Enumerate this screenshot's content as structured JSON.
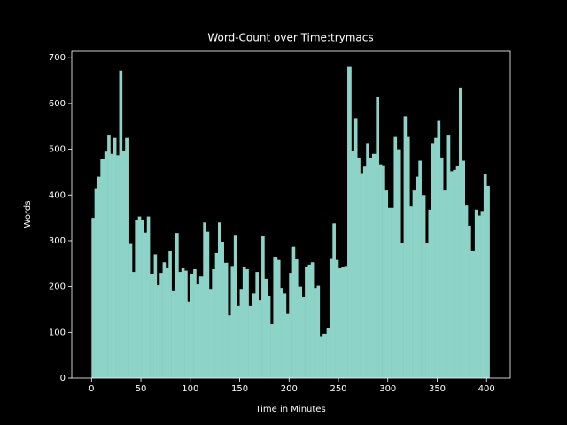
{
  "chart_data": {
    "type": "bar",
    "title": "Word-Count over Time:trymacs",
    "xlabel": "Time in Minutes",
    "ylabel": "Words",
    "color": "#8dd3c7",
    "x": [
      0,
      3,
      6,
      9,
      13,
      16,
      19,
      22,
      25,
      28,
      31,
      34,
      38,
      41,
      44,
      47,
      50,
      53,
      56,
      59,
      63,
      66,
      69,
      72,
      75,
      78,
      81,
      84,
      88,
      91,
      94,
      97,
      100,
      103,
      106,
      109,
      113,
      116,
      119,
      122,
      125,
      128,
      131,
      134,
      138,
      141,
      144,
      147,
      150,
      153,
      156,
      159,
      163,
      166,
      169,
      172,
      175,
      178,
      181,
      184,
      188,
      191,
      194,
      197,
      200,
      203,
      206,
      209,
      213,
      216,
      219,
      222,
      225,
      228,
      231,
      234,
      238,
      241,
      244,
      247,
      250,
      253,
      256,
      259,
      263,
      266,
      269,
      272,
      275,
      278,
      281,
      284,
      288,
      291,
      294,
      297,
      300,
      303,
      306,
      309,
      313,
      316,
      319,
      322,
      325,
      328,
      331,
      334,
      338,
      341,
      344,
      347,
      350,
      353,
      356,
      359,
      363,
      366,
      369,
      372,
      375,
      378,
      381,
      384,
      388,
      391,
      394,
      397,
      400
    ],
    "values": [
      350,
      415,
      440,
      478,
      495,
      530,
      490,
      525,
      487,
      672,
      497,
      525,
      293,
      232,
      345,
      353,
      345,
      318,
      353,
      228,
      270,
      203,
      230,
      253,
      240,
      277,
      190,
      317,
      232,
      240,
      235,
      167,
      228,
      238,
      205,
      222,
      340,
      320,
      195,
      238,
      273,
      340,
      298,
      252,
      137,
      245,
      313,
      157,
      195,
      242,
      238,
      157,
      185,
      232,
      170,
      310,
      217,
      180,
      118,
      265,
      258,
      197,
      185,
      140,
      230,
      287,
      260,
      200,
      178,
      242,
      248,
      253,
      197,
      202,
      90,
      97,
      110,
      262,
      338,
      258,
      240,
      242,
      245,
      680,
      497,
      568,
      482,
      448,
      462,
      512,
      480,
      490,
      615,
      467,
      465,
      410,
      372,
      372,
      527,
      500,
      295,
      572,
      527,
      375,
      410,
      440,
      475,
      400,
      295,
      368,
      512,
      525,
      562,
      482,
      410,
      530,
      452,
      455,
      463,
      635,
      475,
      377,
      333,
      277,
      368,
      355,
      365,
      445,
      420
    ],
    "xlim": [
      -20,
      424
    ],
    "ylim": [
      0,
      714
    ],
    "xticks": [
      0,
      50,
      100,
      150,
      200,
      250,
      300,
      350,
      400
    ],
    "yticks": [
      0,
      100,
      200,
      300,
      400,
      500,
      600,
      700
    ]
  }
}
